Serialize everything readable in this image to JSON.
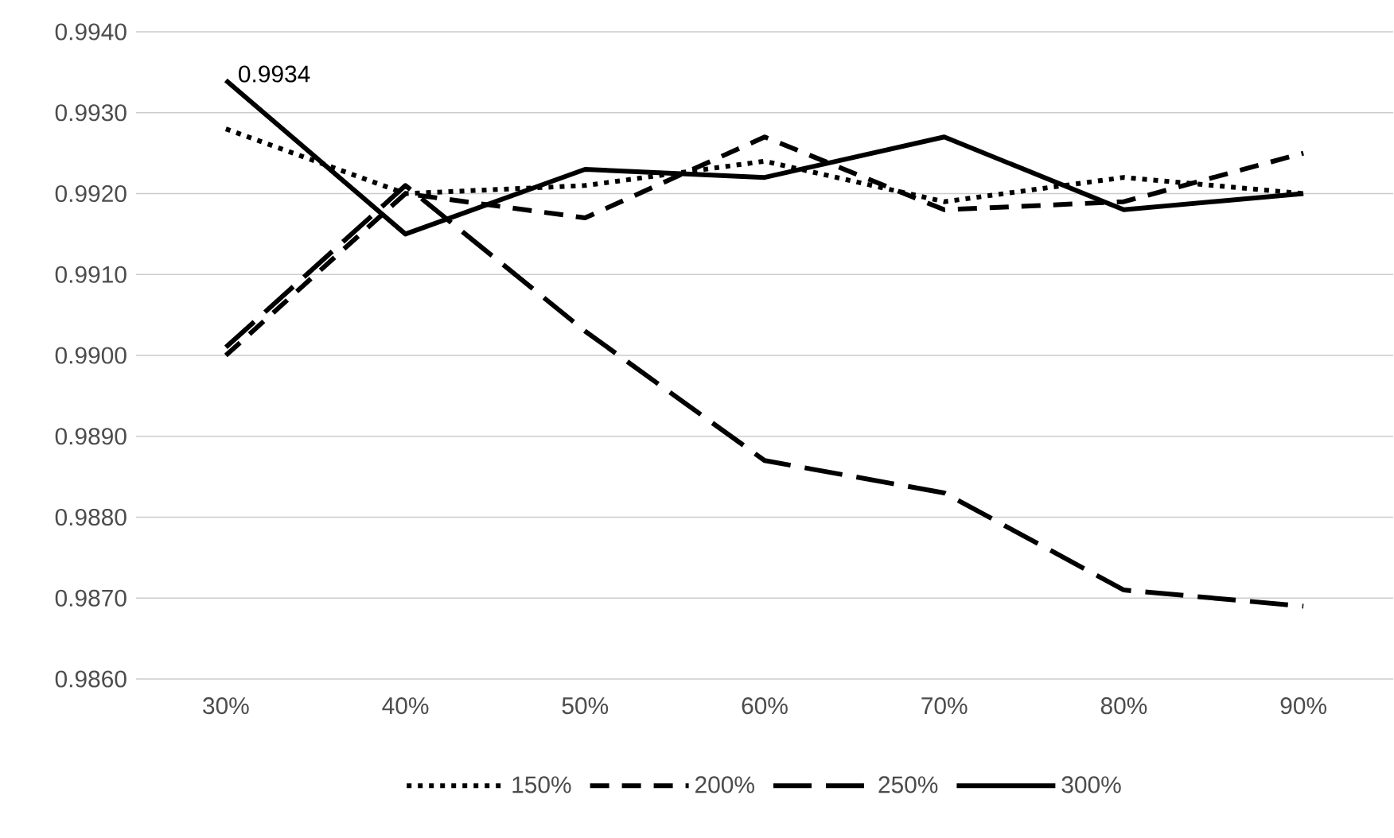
{
  "chart_data": {
    "type": "line",
    "categories": [
      "30%",
      "40%",
      "50%",
      "60%",
      "70%",
      "80%",
      "90%"
    ],
    "series": [
      {
        "name": "150%",
        "color": "#000000",
        "line_style": "dotted",
        "values": [
          0.9928,
          0.992,
          0.9921,
          0.9924,
          0.9919,
          0.9922,
          0.992
        ]
      },
      {
        "name": "200%",
        "color": "#000000",
        "line_style": "dashed",
        "values": [
          0.99,
          0.992,
          0.9917,
          0.9927,
          0.9918,
          0.9919,
          0.9925
        ]
      },
      {
        "name": "250%",
        "color": "#000000",
        "line_style": "dashed",
        "values": [
          0.9901,
          0.9921,
          0.9903,
          0.9887,
          0.9883,
          0.9871,
          0.9869
        ]
      },
      {
        "name": "300%",
        "color": "#000000",
        "line_style": "solid",
        "values": [
          0.9934,
          0.9915,
          0.9923,
          0.9922,
          0.9927,
          0.9918,
          0.992
        ]
      }
    ],
    "ylim": [
      0.986,
      0.994
    ],
    "yticks": [
      {
        "value": 0.986,
        "label": "0.9860"
      },
      {
        "value": 0.987,
        "label": "0.9870"
      },
      {
        "value": 0.988,
        "label": "0.9880"
      },
      {
        "value": 0.989,
        "label": "0.9890"
      },
      {
        "value": 0.99,
        "label": "0.9900"
      },
      {
        "value": 0.991,
        "label": "0.9910"
      },
      {
        "value": 0.992,
        "label": "0.9920"
      },
      {
        "value": 0.993,
        "label": "0.9930"
      },
      {
        "value": 0.994,
        "label": "0.9940"
      }
    ],
    "grid": "y",
    "legend": "bottom",
    "marker": "none",
    "annotations": [
      {
        "text": "0.9934",
        "x": "30%",
        "y": 0.9934
      }
    ]
  }
}
